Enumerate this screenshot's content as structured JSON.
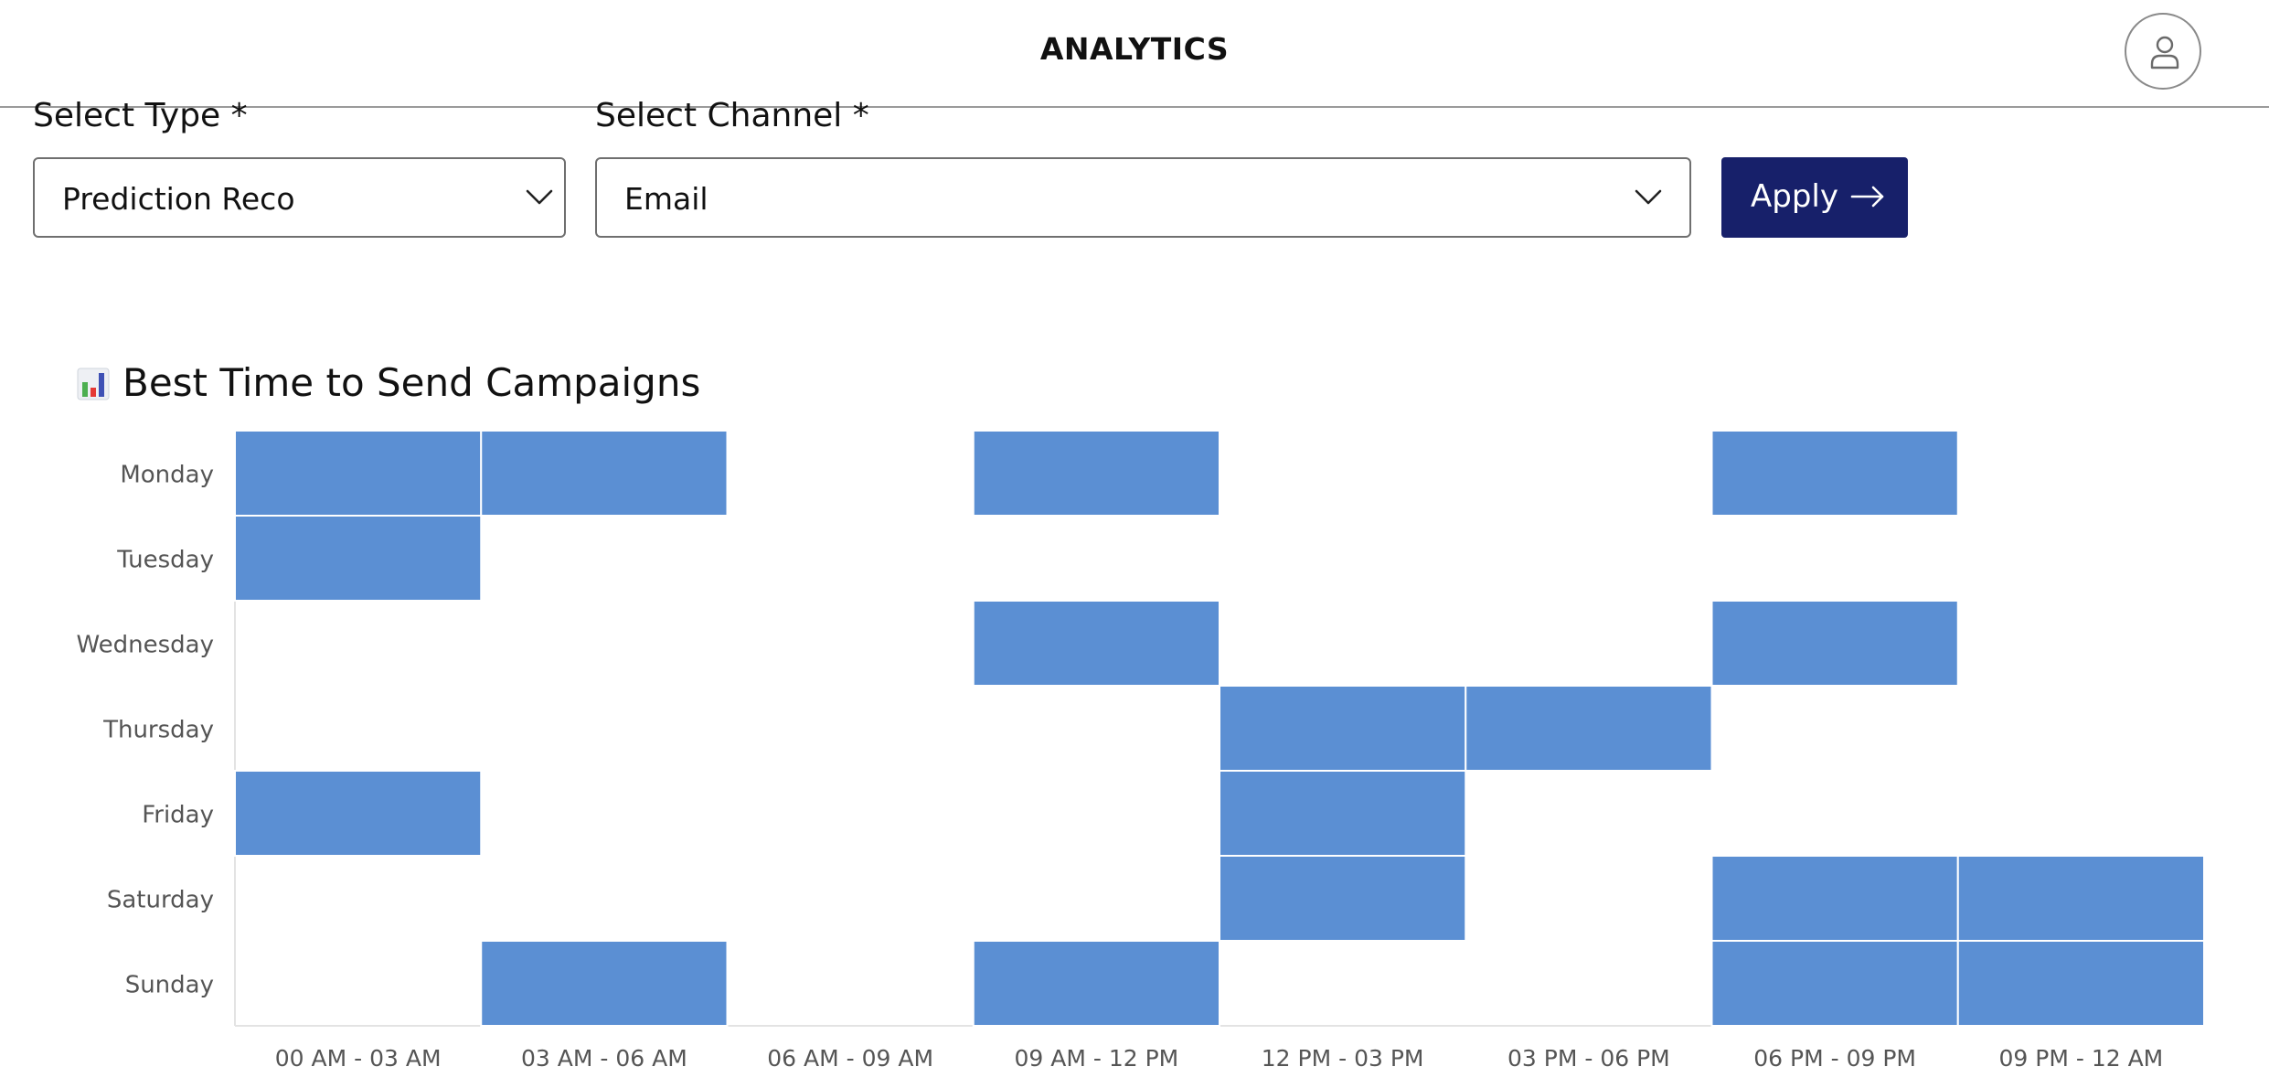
{
  "header": {
    "title": "ANALYTICS",
    "profile_icon": "user-icon"
  },
  "filters": {
    "type": {
      "label": "Select Type *",
      "value": "Prediction Reco",
      "icon": "chevron-down-icon"
    },
    "channel": {
      "label": "Select Channel *",
      "value": "Email",
      "icon": "chevron-down-icon"
    },
    "apply": {
      "label": "Apply",
      "icon": "arrow-right-icon",
      "color": "#17206a"
    }
  },
  "chart": {
    "title": "Best Time to Send Campaigns",
    "title_icon": "bar-chart-icon"
  },
  "chart_data": {
    "type": "heatmap",
    "title": "Best Time to Send Campaigns",
    "rows": [
      "Monday",
      "Tuesday",
      "Wednesday",
      "Thursday",
      "Friday",
      "Saturday",
      "Sunday"
    ],
    "columns": [
      "00 AM - 03 AM",
      "03 AM - 06 AM",
      "06 AM - 09 AM",
      "09 AM - 12 PM",
      "12 PM - 03 PM",
      "03 PM - 06 PM",
      "06 PM - 09 PM",
      "09 PM - 12 AM"
    ],
    "values": [
      [
        1,
        1,
        0,
        1,
        0,
        0,
        1,
        0
      ],
      [
        1,
        0,
        0,
        0,
        0,
        0,
        0,
        0
      ],
      [
        0,
        0,
        0,
        1,
        0,
        0,
        1,
        0
      ],
      [
        0,
        0,
        0,
        0,
        1,
        1,
        0,
        0
      ],
      [
        1,
        0,
        0,
        0,
        1,
        0,
        0,
        0
      ],
      [
        0,
        0,
        0,
        0,
        1,
        0,
        1,
        1
      ],
      [
        0,
        1,
        0,
        1,
        0,
        0,
        1,
        1
      ]
    ],
    "highlight_color": "#5b8fd3",
    "grid": false,
    "legend": "none"
  }
}
